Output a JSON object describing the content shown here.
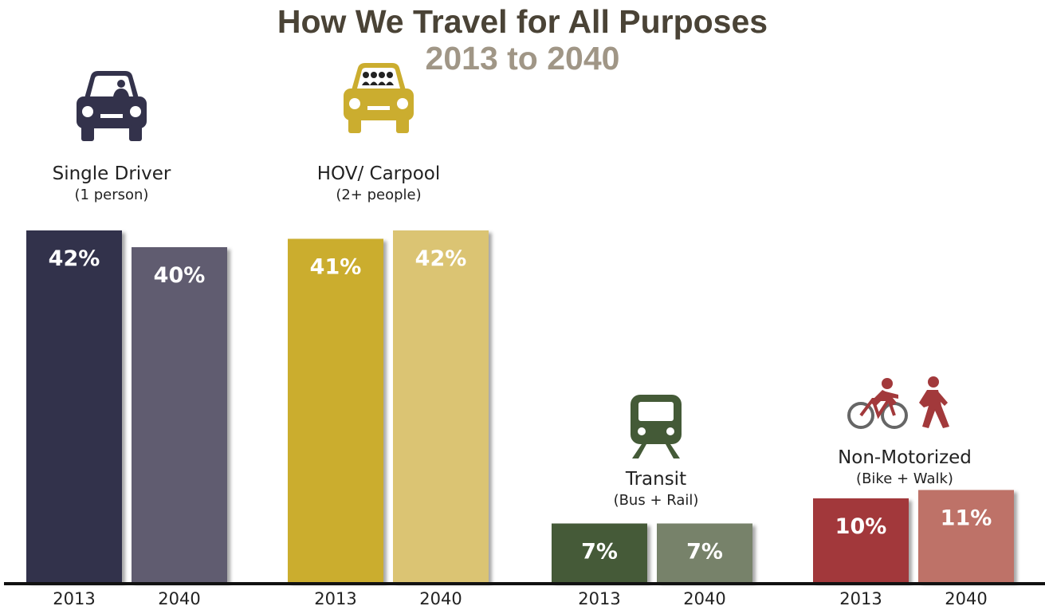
{
  "chart_data": {
    "type": "bar",
    "title": "How We Travel for All Purposes",
    "subtitle": "2013 to 2040",
    "ylim": [
      0,
      50
    ],
    "grid": false,
    "legend": "none",
    "groups": [
      {
        "label": "Single Driver",
        "sublabel": "(1 person)",
        "icon": "car-icon",
        "bars": [
          {
            "year": "2013",
            "value": 42,
            "label": "42%",
            "color": "#33324b"
          },
          {
            "year": "2040",
            "value": 40,
            "label": "40%",
            "color": "#615c6f"
          }
        ]
      },
      {
        "label": "HOV/ Carpool",
        "sublabel": "(2+ people)",
        "icon": "carpool-icon",
        "bars": [
          {
            "year": "2013",
            "value": 41,
            "label": "41%",
            "color": "#cbad2f"
          },
          {
            "year": "2040",
            "value": 42,
            "label": "42%",
            "color": "#dbc473"
          }
        ]
      },
      {
        "label": "Transit",
        "sublabel": "(Bus + Rail)",
        "icon": "train-icon",
        "bars": [
          {
            "year": "2013",
            "value": 7,
            "label": "7%",
            "color": "#445a37"
          },
          {
            "year": "2040",
            "value": 7,
            "label": "7%",
            "color": "#77826a"
          }
        ]
      },
      {
        "label": "Non-Motorized",
        "sublabel": "(Bike + Walk)",
        "icon": "bike-walk-icon",
        "bars": [
          {
            "year": "2013",
            "value": 10,
            "label": "10%",
            "color": "#a2393b"
          },
          {
            "year": "2040",
            "value": 11,
            "label": "11%",
            "color": "#be7267"
          }
        ]
      }
    ],
    "icon_colors": {
      "car-icon": "#33324b",
      "carpool-icon": "#cbad2f",
      "train-icon": "#445a37",
      "bike-walk-icon": "#a2393b"
    }
  }
}
